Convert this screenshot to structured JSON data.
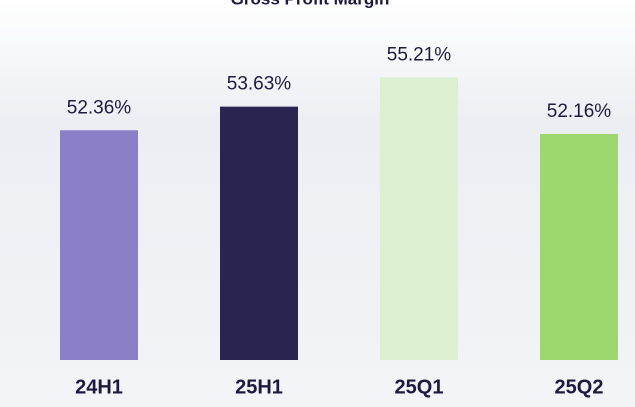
{
  "chart_data": {
    "type": "bar",
    "title": "Gross Profit Margin",
    "categories": [
      "24H1",
      "25H1",
      "25Q1",
      "25Q2"
    ],
    "values": [
      52.36,
      53.63,
      55.21,
      52.16
    ],
    "value_labels": [
      "52.36%",
      "53.63%",
      "55.21%",
      "52.16%"
    ],
    "colors": [
      "#8b80c8",
      "#2a2450",
      "#dcefd0",
      "#9ed670"
    ],
    "ylim": [
      40,
      57
    ]
  }
}
